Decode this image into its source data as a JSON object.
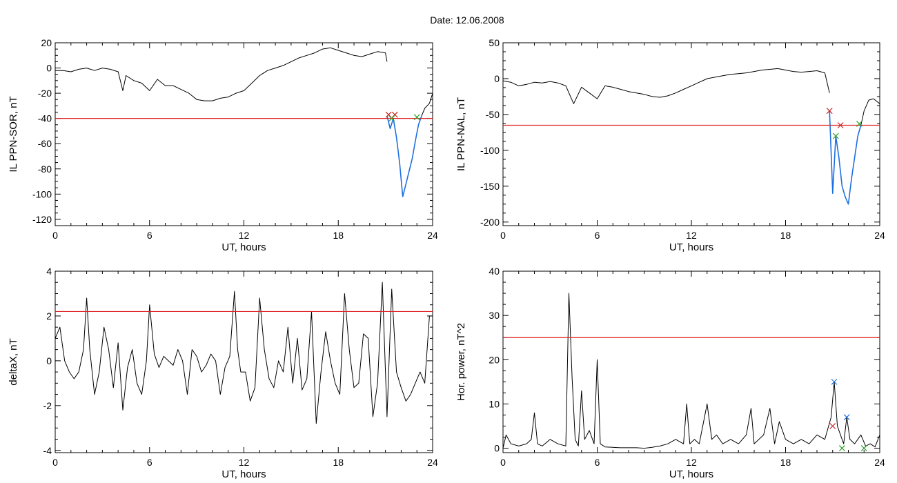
{
  "figure_title": "Date:  12.06.2008",
  "chart_data": [
    {
      "type": "line",
      "id": "p1",
      "xlabel": "UT, hours",
      "ylabel": "IL PPN-SOR, nT",
      "xlim": [
        0,
        24
      ],
      "ylim": [
        -125,
        20
      ],
      "xticks": [
        0,
        6,
        12,
        18,
        24
      ],
      "yticks": [
        20,
        0,
        -20,
        -40,
        -60,
        -80,
        -100,
        -120
      ],
      "threshold": -40,
      "series": [
        {
          "color": "#000000",
          "x": [
            0,
            0.5,
            1,
            1.5,
            2,
            2.5,
            3,
            3.5,
            4,
            4.3,
            4.5,
            5,
            5.5,
            6,
            6.5,
            7,
            7.5,
            8,
            8.5,
            9,
            9.5,
            10,
            10.5,
            11,
            11.5,
            12,
            12.5,
            13,
            13.5,
            14,
            14.5,
            15,
            15.5,
            16,
            16.5,
            17,
            17.5,
            18,
            18.5,
            19,
            19.5,
            20,
            20.5,
            21,
            21.1
          ],
          "y": [
            -2,
            -2,
            -3,
            -1,
            0,
            -2,
            0,
            -1,
            -3,
            -18,
            -6,
            -10,
            -12,
            -18,
            -9,
            -14,
            -14,
            -17,
            -20,
            -25,
            -26,
            -26,
            -24,
            -23,
            -20,
            -18,
            -12,
            -6,
            -2,
            0,
            2,
            5,
            8,
            10,
            12,
            15,
            16,
            14,
            12,
            10,
            9,
            11,
            13,
            12,
            5
          ]
        },
        {
          "color": "#1e6fe0",
          "x": [
            21.1,
            21.3,
            21.5,
            21.7,
            21.9,
            22.1,
            22.3,
            22.5,
            22.7,
            22.9,
            23.1,
            23.3
          ],
          "y": [
            -38,
            -48,
            -40,
            -55,
            -75,
            -102,
            -92,
            -82,
            -72,
            -58,
            -45,
            -38
          ]
        },
        {
          "color": "#000000",
          "x": [
            23.3,
            23.5,
            23.8,
            24
          ],
          "y": [
            -38,
            -32,
            -28,
            -20
          ]
        }
      ],
      "markers": [
        {
          "color": "#cc2222",
          "x": 21.2,
          "y": -37
        },
        {
          "color": "#cc2222",
          "x": 21.6,
          "y": -37
        },
        {
          "color": "#2ca02c",
          "x": 21.4,
          "y": -40
        },
        {
          "color": "#2ca02c",
          "x": 23.0,
          "y": -39
        }
      ]
    },
    {
      "type": "line",
      "id": "p2",
      "xlabel": "UT, hours",
      "ylabel": "IL PPN-NAL, nT",
      "xlim": [
        0,
        24
      ],
      "ylim": [
        -205,
        50
      ],
      "xticks": [
        0,
        6,
        12,
        18,
        24
      ],
      "yticks": [
        50,
        0,
        -50,
        -100,
        -150,
        -200
      ],
      "threshold": -65,
      "series": [
        {
          "color": "#000000",
          "x": [
            0,
            0.5,
            1,
            1.5,
            2,
            2.5,
            3,
            3.5,
            4,
            4.5,
            5,
            5.5,
            6,
            6.5,
            7,
            7.5,
            8,
            8.5,
            9,
            9.5,
            10,
            10.5,
            11,
            11.5,
            12,
            12.5,
            13,
            13.5,
            14,
            14.5,
            15,
            15.5,
            16,
            16.5,
            17,
            17.5,
            18,
            18.5,
            19,
            19.5,
            20,
            20.5,
            20.8
          ],
          "y": [
            -3,
            -5,
            -10,
            -8,
            -5,
            -6,
            -4,
            -6,
            -10,
            -35,
            -12,
            -20,
            -28,
            -10,
            -12,
            -15,
            -18,
            -20,
            -22,
            -25,
            -26,
            -24,
            -20,
            -15,
            -10,
            -5,
            0,
            2,
            4,
            6,
            7,
            8,
            10,
            12,
            13,
            14,
            12,
            10,
            9,
            10,
            11,
            8,
            -20
          ]
        },
        {
          "color": "#1e6fe0",
          "x": [
            20.8,
            21.0,
            21.2,
            21.4,
            21.6,
            21.8,
            22.0,
            22.2,
            22.4,
            22.6,
            22.8
          ],
          "y": [
            -45,
            -160,
            -80,
            -110,
            -150,
            -165,
            -175,
            -140,
            -110,
            -80,
            -65
          ]
        },
        {
          "color": "#000000",
          "x": [
            22.8,
            23.0,
            23.3,
            23.6,
            24
          ],
          "y": [
            -65,
            -45,
            -30,
            -28,
            -35
          ]
        }
      ],
      "markers": [
        {
          "color": "#cc2222",
          "x": 20.8,
          "y": -45
        },
        {
          "color": "#cc2222",
          "x": 21.5,
          "y": -65
        },
        {
          "color": "#2ca02c",
          "x": 21.2,
          "y": -80
        },
        {
          "color": "#2ca02c",
          "x": 22.7,
          "y": -63
        }
      ]
    },
    {
      "type": "line",
      "id": "p3",
      "xlabel": "UT, hours",
      "ylabel": "deltaX, nT",
      "xlim": [
        0,
        24
      ],
      "ylim": [
        -4.1,
        4
      ],
      "xticks": [
        0,
        6,
        12,
        18,
        24
      ],
      "yticks": [
        4,
        2,
        0,
        -2,
        -4
      ],
      "threshold": 2.2,
      "series": [
        {
          "color": "#000000",
          "x": [
            0,
            0.3,
            0.6,
            0.9,
            1.2,
            1.5,
            1.8,
            2.0,
            2.2,
            2.5,
            2.8,
            3.1,
            3.4,
            3.7,
            4.0,
            4.3,
            4.6,
            4.9,
            5.2,
            5.5,
            5.8,
            6.0,
            6.3,
            6.6,
            6.9,
            7.2,
            7.5,
            7.8,
            8.1,
            8.4,
            8.7,
            9.0,
            9.3,
            9.6,
            9.9,
            10.2,
            10.5,
            10.8,
            11.1,
            11.4,
            11.6,
            11.8,
            12.1,
            12.4,
            12.7,
            13.0,
            13.3,
            13.6,
            13.9,
            14.2,
            14.5,
            14.8,
            15.1,
            15.4,
            15.7,
            16.0,
            16.3,
            16.6,
            16.9,
            17.2,
            17.5,
            17.8,
            18.1,
            18.4,
            18.7,
            19.0,
            19.3,
            19.6,
            19.9,
            20.2,
            20.5,
            20.8,
            21.1,
            21.4,
            21.7,
            22.0,
            22.3,
            22.6,
            22.9,
            23.2,
            23.5,
            23.8,
            24
          ],
          "y": [
            1,
            1.5,
            0,
            -0.5,
            -0.8,
            -0.5,
            0.5,
            2.8,
            0.5,
            -1.5,
            -0.5,
            1.5,
            0.5,
            -1.2,
            0.8,
            -2.2,
            -0.3,
            0.5,
            -1,
            -1.5,
            0,
            2.5,
            0.3,
            -0.3,
            0.2,
            0,
            -0.2,
            0.5,
            0,
            -1.5,
            0.5,
            0.2,
            -0.5,
            -0.2,
            0.3,
            0,
            -1.5,
            -0.3,
            0.2,
            3.1,
            0.5,
            -0.5,
            -0.5,
            -1.8,
            -1.2,
            2.8,
            0.5,
            -0.8,
            -1.2,
            0,
            -0.5,
            1.5,
            -1,
            1,
            -1.3,
            -0.8,
            2.2,
            -2.8,
            -0.5,
            1.3,
            0,
            -1,
            -1.5,
            3.0,
            0.5,
            -1.2,
            -1.0,
            1.2,
            1.0,
            -2.5,
            -1.0,
            3.5,
            -2.5,
            3.2,
            -0.5,
            -1.2,
            -1.8,
            -1.5,
            -1.0,
            -0.5,
            -1.0,
            2.0,
            2.0
          ]
        }
      ],
      "markers": []
    },
    {
      "type": "line",
      "id": "p4",
      "xlabel": "UT, hours",
      "ylabel": "Hor. power, nT^2",
      "xlim": [
        0,
        24
      ],
      "ylim": [
        -1,
        40
      ],
      "xticks": [
        0,
        6,
        12,
        18,
        24
      ],
      "yticks": [
        40,
        30,
        20,
        10,
        0
      ],
      "threshold": 25,
      "series": [
        {
          "color": "#000000",
          "x": [
            0,
            0.2,
            0.5,
            1,
            1.5,
            1.8,
            2,
            2.2,
            2.5,
            3,
            3.5,
            4,
            4.2,
            4.4,
            4.6,
            4.8,
            5,
            5.2,
            5.5,
            5.8,
            6,
            6.2,
            6.5,
            7,
            7.5,
            8,
            8.5,
            9,
            9.5,
            10,
            10.5,
            11,
            11.5,
            11.7,
            11.9,
            12.2,
            12.5,
            13,
            13.3,
            13.6,
            14,
            14.5,
            15,
            15.5,
            15.8,
            16,
            16.3,
            16.6,
            17,
            17.3,
            17.6,
            18,
            18.5,
            19,
            19.5,
            20,
            20.5,
            20.9,
            21.1,
            21.3,
            21.5,
            21.7,
            21.9,
            22.1,
            22.4,
            22.8,
            23.1,
            23.4,
            23.7,
            24
          ],
          "y": [
            0,
            3,
            1,
            0.5,
            1,
            2,
            8,
            1,
            0.5,
            2,
            1,
            0.5,
            35,
            16,
            2,
            0.5,
            13,
            2,
            4,
            1,
            20,
            1,
            0.3,
            0.2,
            0.1,
            0.1,
            0.1,
            0,
            0.2,
            0.5,
            1,
            2,
            1,
            10,
            1,
            2,
            1,
            10,
            2,
            3,
            1,
            2,
            1,
            3,
            9,
            1,
            2,
            3,
            9,
            1,
            6,
            2,
            1,
            2,
            1,
            3,
            2,
            7,
            15,
            5,
            3,
            1,
            7,
            2,
            1,
            3,
            0.5,
            1,
            0.3,
            3
          ]
        }
      ],
      "markers": [
        {
          "color": "#1e6fe0",
          "x": 21.1,
          "y": 15
        },
        {
          "color": "#1e6fe0",
          "x": 21.9,
          "y": 7
        },
        {
          "color": "#cc2222",
          "x": 21.0,
          "y": 5
        },
        {
          "color": "#2ca02c",
          "x": 21.6,
          "y": 0
        },
        {
          "color": "#2ca02c",
          "x": 23.0,
          "y": 0
        }
      ]
    }
  ]
}
